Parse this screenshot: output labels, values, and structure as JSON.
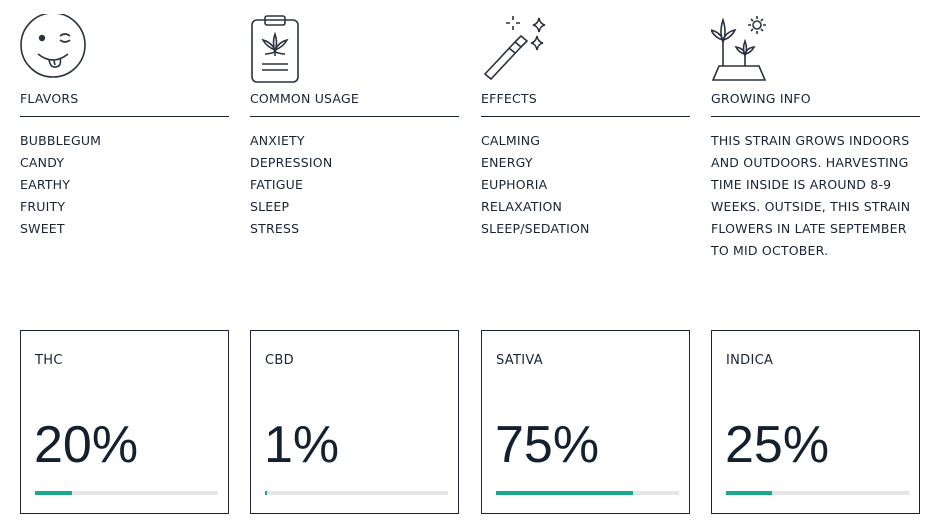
{
  "columns": [
    {
      "icon": "winking-face-icon",
      "title": "FLAVORS",
      "items": [
        "BUBBLEGUM",
        "CANDY",
        "EARTHY",
        "FRUITY",
        "SWEET"
      ]
    },
    {
      "icon": "clipboard-leaf-icon",
      "title": "COMMON USAGE",
      "items": [
        "ANXIETY",
        "DEPRESSION",
        "FATIGUE",
        "SLEEP",
        "STRESS"
      ]
    },
    {
      "icon": "magic-wand-icon",
      "title": "EFFECTS",
      "items": [
        "CALMING",
        "ENERGY",
        "EUPHORIA",
        "RELAXATION",
        "SLEEP/SEDATION"
      ]
    },
    {
      "icon": "growing-plant-icon",
      "title": "GROWING INFO",
      "text": "THIS STRAIN GROWS INDOORS AND OUTDOORS. HARVESTING TIME INSIDE IS AROUND 8-9 WEEKS. OUTSIDE, THIS STRAIN FLOWERS IN LATE SEPTEMBER TO MID OCTOBER."
    }
  ],
  "stats": [
    {
      "label": "THC",
      "value": "20%",
      "level": 0.2
    },
    {
      "label": "CBD",
      "value": "1%",
      "level": 0.01
    },
    {
      "label": "SATIVA",
      "value": "75%",
      "level": 0.75
    },
    {
      "label": "INDICA",
      "value": "25%",
      "level": 0.25
    }
  ],
  "colors": {
    "text": "#1a2433",
    "accent": "#1aaa8a",
    "track": "#e6e6e6"
  }
}
